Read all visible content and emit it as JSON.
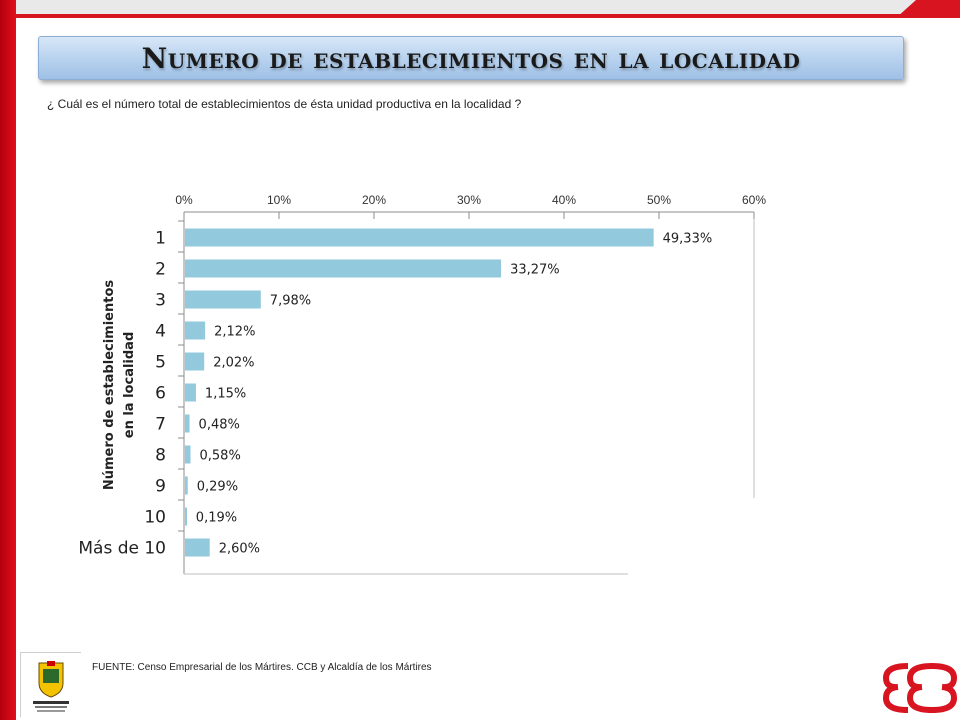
{
  "title": "Numero de establecimientos en la localidad",
  "question": "¿ Cuál es el número total de establecimientos de ésta unidad productiva en la localidad ?",
  "footer": "FUENTE: Censo Empresarial de los Mártires. CCB y Alcaldía de los Mártires",
  "logo": {
    "icon": "coat-of-arms-icon",
    "text": "ALCALDÍA MAYOR DE BOGOTÁ D.C."
  },
  "brand_icon": "ccb-logo-icon",
  "colors": {
    "bar": "#92c9dc",
    "accent": "#d7141f",
    "title_bg": "#b9d3ef"
  },
  "chart_data": {
    "type": "bar",
    "orientation": "horizontal",
    "title": "",
    "ylabel_lines": [
      "Número de establecimientos",
      "en la localidad"
    ],
    "xlabel": "",
    "xlim": [
      0,
      60
    ],
    "x_ticks": [
      "0%",
      "10%",
      "20%",
      "30%",
      "40%",
      "50%",
      "60%"
    ],
    "categories": [
      "1",
      "2",
      "3",
      "4",
      "5",
      "6",
      "7",
      "8",
      "9",
      "10",
      "Más de 10"
    ],
    "values": [
      49.33,
      33.27,
      7.98,
      2.12,
      2.02,
      1.15,
      0.48,
      0.58,
      0.29,
      0.19,
      2.6
    ],
    "value_labels": [
      "49,33%",
      "33,27%",
      "7,98%",
      "2,12%",
      "2,02%",
      "1,15%",
      "0,48%",
      "0,58%",
      "0,29%",
      "0,19%",
      "2,60%"
    ],
    "x_axis_position": "top",
    "grid": false,
    "legend": "none"
  }
}
